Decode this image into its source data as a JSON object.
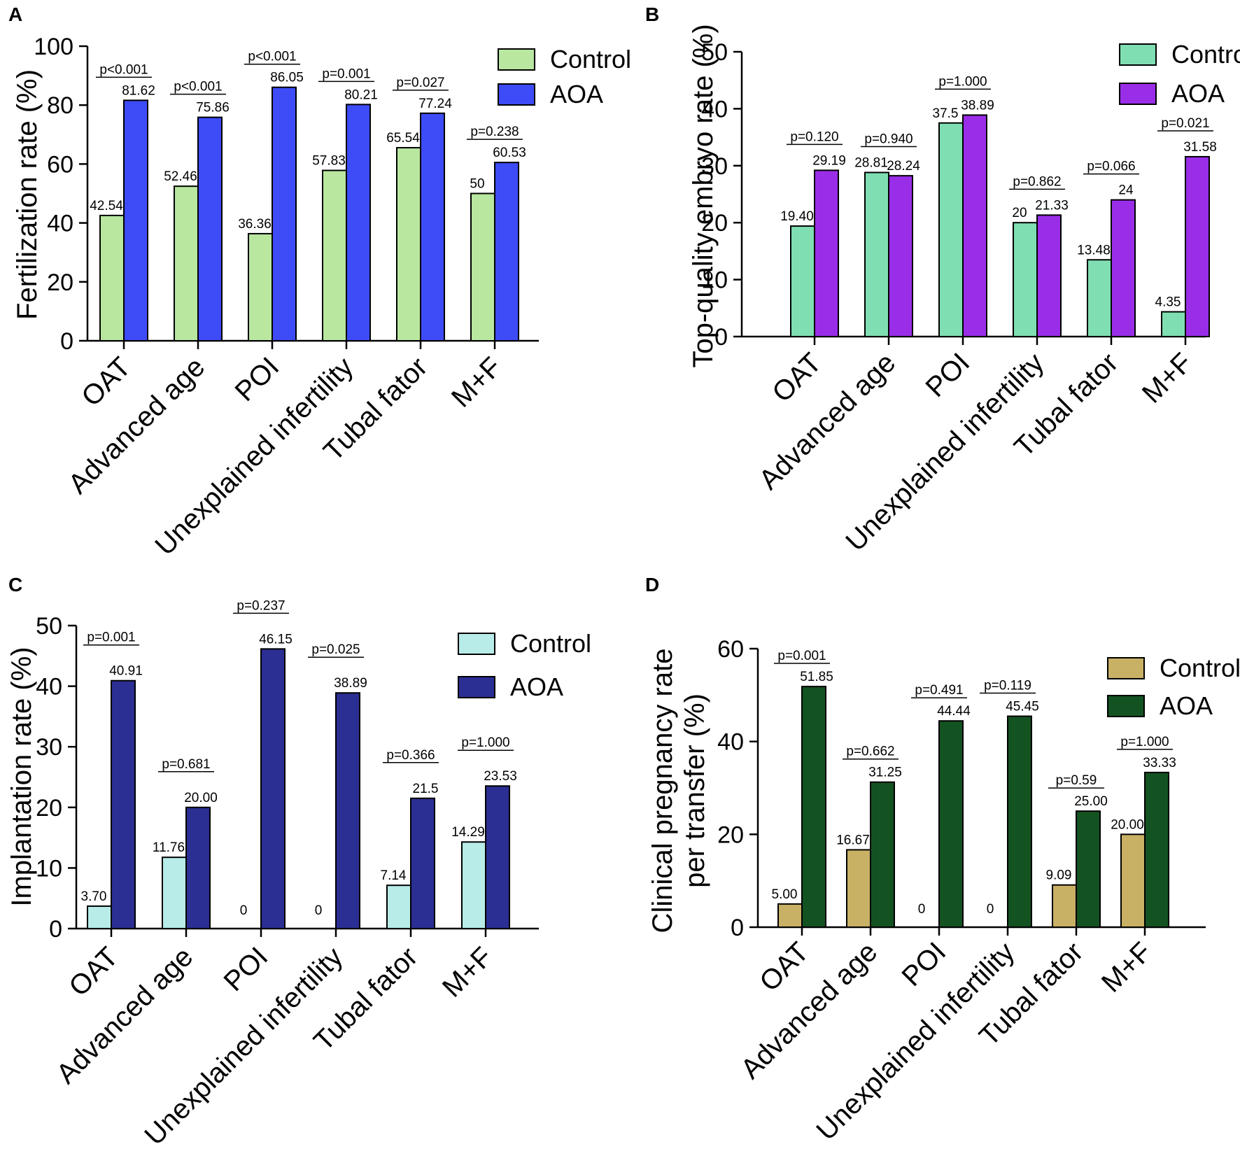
{
  "chart_data": [
    {
      "id": "A",
      "type": "bar",
      "panel_label": "A",
      "title": "",
      "xlabel": "",
      "ylabel": "Fertilization rate (%)",
      "ylim": [
        0,
        100
      ],
      "yticks": [
        "0",
        "20",
        "40",
        "60",
        "80",
        "100"
      ],
      "grid": false,
      "legend_position": "top-right",
      "categories": [
        "OAT",
        "Advanced age",
        "POI",
        "Unexplained infertility",
        "Tubal fator",
        "M+F"
      ],
      "series": [
        {
          "name": "Control",
          "color": "#b9e7a0",
          "values": [
            42.54,
            52.46,
            36.36,
            57.83,
            65.54,
            50
          ],
          "labels": [
            "42.54",
            "52.46",
            "36.36",
            "57.83",
            "65.54",
            "50"
          ]
        },
        {
          "name": "AOA",
          "color": "#3d4cf6",
          "values": [
            81.62,
            75.86,
            86.05,
            80.21,
            77.24,
            60.53
          ],
          "labels": [
            "81.62",
            "75.86",
            "86.05",
            "80.21",
            "77.24",
            "60.53"
          ]
        }
      ],
      "p_values": [
        "p<0.001",
        "p<0.001",
        "p<0.001",
        "p=0.001",
        "p=0.027",
        "p=0.238"
      ]
    },
    {
      "id": "B",
      "type": "bar",
      "panel_label": "B",
      "title": "",
      "xlabel": "",
      "ylabel": "Top-quality embryo rate (%)",
      "ylim": [
        0,
        50
      ],
      "yticks": [
        "0",
        "10",
        "20",
        "30",
        "40",
        "50"
      ],
      "grid": false,
      "legend_position": "top-right",
      "categories": [
        "OAT",
        "Advanced age",
        "POI",
        "Unexplained infertility",
        "Tubal fator",
        "M+F"
      ],
      "series": [
        {
          "name": "Control",
          "color": "#7fdfb3",
          "values": [
            19.4,
            28.81,
            37.5,
            20,
            13.48,
            4.35
          ],
          "labels": [
            "19.40",
            "28.81",
            "37.5",
            "20",
            "13.48",
            "4.35"
          ]
        },
        {
          "name": "AOA",
          "color": "#9a2ee8",
          "values": [
            29.19,
            28.24,
            38.89,
            21.33,
            24,
            31.58
          ],
          "labels": [
            "29.19",
            "28.24",
            "38.89",
            "21.33",
            "24",
            "31.58"
          ]
        }
      ],
      "p_values": [
        "p=0.120",
        "p=0.940",
        "p=1.000",
        "p=0.862",
        "p=0.066",
        "p=0.021"
      ]
    },
    {
      "id": "C",
      "type": "bar",
      "panel_label": "C",
      "title": "",
      "xlabel": "",
      "ylabel": "Implantation rate (%)",
      "ylim": [
        0,
        50
      ],
      "yticks": [
        "0",
        "10",
        "20",
        "30",
        "40",
        "50"
      ],
      "grid": false,
      "legend_position": "top-right",
      "categories": [
        "OAT",
        "Advanced age",
        "POI",
        "Unexplained infertility",
        "Tubal fator",
        "M+F"
      ],
      "series": [
        {
          "name": "Control",
          "color": "#b7ece8",
          "values": [
            3.7,
            11.76,
            0,
            0,
            7.14,
            14.29
          ],
          "labels": [
            "3.70",
            "11.76",
            "0",
            "0",
            "7.14",
            "14.29"
          ]
        },
        {
          "name": "AOA",
          "color": "#2b2e92",
          "values": [
            40.91,
            20.0,
            46.15,
            38.89,
            21.5,
            23.53
          ],
          "labels": [
            "40.91",
            "20.00",
            "46.15",
            "38.89",
            "21.5",
            "23.53"
          ]
        }
      ],
      "p_values": [
        "p=0.001",
        "p=0.681",
        "p=0.237",
        "p=0.025",
        "p=0.366",
        "p=1.000"
      ]
    },
    {
      "id": "D",
      "type": "bar",
      "panel_label": "D",
      "title": "",
      "xlabel": "",
      "ylabel": "Clinical pregnancy rate per transfer (%)",
      "ylabel_lines": [
        "Clinical pregnancy rate",
        "per transfer (%)"
      ],
      "ylim": [
        0,
        60
      ],
      "yticks": [
        "0",
        "20",
        "40",
        "60"
      ],
      "grid": false,
      "legend_position": "top-right",
      "categories": [
        "OAT",
        "Advanced age",
        "POI",
        "Unexplained infertility",
        "Tubal fator",
        "M+F"
      ],
      "series": [
        {
          "name": "Control",
          "color": "#c8b065",
          "values": [
            5.0,
            16.67,
            0,
            0,
            9.09,
            20.0
          ],
          "labels": [
            "5.00",
            "16.67",
            "0",
            "0",
            "9.09",
            "20.00"
          ]
        },
        {
          "name": "AOA",
          "color": "#135322",
          "values": [
            51.85,
            31.25,
            44.44,
            45.45,
            25.0,
            33.33
          ],
          "labels": [
            "51.85",
            "31.25",
            "44.44",
            "45.45",
            "25.00",
            "33.33"
          ]
        }
      ],
      "p_values": [
        "p=0.001",
        "p=0.662",
        "p=0.491",
        "p=0.119",
        "p=0.59",
        "p=1.000"
      ]
    }
  ]
}
